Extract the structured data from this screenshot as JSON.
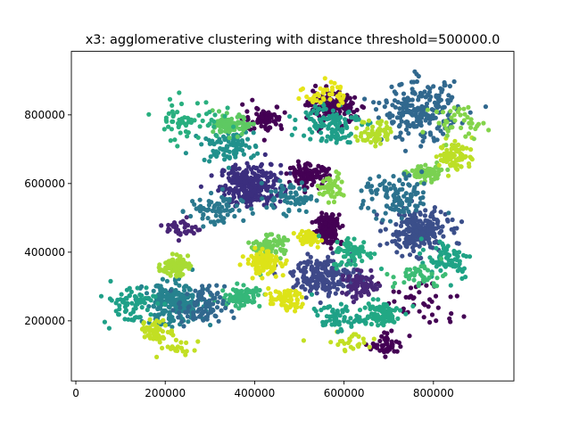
{
  "chart_data": {
    "type": "scatter",
    "title": "x3: agglomerative clustering with distance threshold=500000.0",
    "xlabel": "",
    "ylabel": "",
    "xlim": [
      -10000,
      980000
    ],
    "ylim": [
      25000,
      985000
    ],
    "xticks": [
      0,
      200000,
      400000,
      600000,
      800000
    ],
    "yticks": [
      200000,
      400000,
      600000,
      800000
    ],
    "xtick_labels": [
      "0",
      "200000",
      "400000",
      "600000",
      "800000"
    ],
    "ytick_labels": [
      "200000",
      "400000",
      "600000",
      "800000"
    ],
    "grid": false,
    "legend": "none",
    "clusters": [
      {
        "center": [
          390000,
          595000
        ],
        "spread": [
          45000,
          40000
        ],
        "count": 260,
        "color": "#3b2e7e"
      },
      {
        "center": [
          765000,
          460000
        ],
        "spread": [
          45000,
          40000
        ],
        "count": 230,
        "color": "#3b4f8a"
      },
      {
        "center": [
          575000,
          820000
        ],
        "spread": [
          35000,
          30000
        ],
        "count": 160,
        "color": "#440154"
      },
      {
        "center": [
          520000,
          625000
        ],
        "spread": [
          30000,
          20000
        ],
        "count": 110,
        "color": "#440154"
      },
      {
        "center": [
          565000,
          470000
        ],
        "spread": [
          20000,
          30000
        ],
        "count": 130,
        "color": "#440154"
      },
      {
        "center": [
          420000,
          790000
        ],
        "spread": [
          30000,
          25000
        ],
        "count": 70,
        "color": "#440154"
      },
      {
        "center": [
          700000,
          130000
        ],
        "spread": [
          25000,
          20000
        ],
        "count": 50,
        "color": "#440154"
      },
      {
        "center": [
          770000,
          250000
        ],
        "spread": [
          60000,
          50000
        ],
        "count": 40,
        "color": "#440154"
      },
      {
        "center": [
          770000,
          810000
        ],
        "spread": [
          55000,
          55000
        ],
        "count": 220,
        "color": "#31688e"
      },
      {
        "center": [
          220000,
          250000
        ],
        "spread": [
          45000,
          40000
        ],
        "count": 230,
        "color": "#26828e"
      },
      {
        "center": [
          560000,
          330000
        ],
        "spread": [
          50000,
          35000
        ],
        "count": 200,
        "color": "#3e4989"
      },
      {
        "center": [
          640000,
          300000
        ],
        "spread": [
          30000,
          25000
        ],
        "count": 70,
        "color": "#482878"
      },
      {
        "center": [
          340000,
          710000
        ],
        "spread": [
          40000,
          30000
        ],
        "count": 90,
        "color": "#21918c"
      },
      {
        "center": [
          570000,
          780000
        ],
        "spread": [
          45000,
          40000
        ],
        "count": 110,
        "color": "#1f9e89"
      },
      {
        "center": [
          680000,
          220000
        ],
        "spread": [
          30000,
          25000
        ],
        "count": 100,
        "color": "#22a884"
      },
      {
        "center": [
          350000,
          770000
        ],
        "spread": [
          25000,
          18000
        ],
        "count": 100,
        "color": "#5ec962"
      },
      {
        "center": [
          430000,
          420000
        ],
        "spread": [
          25000,
          18000
        ],
        "count": 90,
        "color": "#6ece58"
      },
      {
        "center": [
          780000,
          630000
        ],
        "spread": [
          25000,
          15000
        ],
        "count": 80,
        "color": "#7ad151"
      },
      {
        "center": [
          370000,
          270000
        ],
        "spread": [
          30000,
          20000
        ],
        "count": 90,
        "color": "#35b779"
      },
      {
        "center": [
          420000,
          370000
        ],
        "spread": [
          25000,
          22000
        ],
        "count": 110,
        "color": "#dde318"
      },
      {
        "center": [
          520000,
          440000
        ],
        "spread": [
          18000,
          15000
        ],
        "count": 50,
        "color": "#dde318"
      },
      {
        "center": [
          470000,
          260000
        ],
        "spread": [
          25000,
          20000
        ],
        "count": 70,
        "color": "#dde318"
      },
      {
        "center": [
          220000,
          360000
        ],
        "spread": [
          20000,
          18000
        ],
        "count": 80,
        "color": "#a8db34"
      },
      {
        "center": [
          850000,
          680000
        ],
        "spread": [
          25000,
          30000
        ],
        "count": 80,
        "color": "#bddf26"
      },
      {
        "center": [
          670000,
          750000
        ],
        "spread": [
          25000,
          25000
        ],
        "count": 60,
        "color": "#b5de2b"
      },
      {
        "center": [
          560000,
          860000
        ],
        "spread": [
          30000,
          25000
        ],
        "count": 40,
        "color": "#e5e419"
      },
      {
        "center": [
          180000,
          170000
        ],
        "spread": [
          25000,
          20000
        ],
        "count": 60,
        "color": "#c2df23"
      },
      {
        "center": [
          620000,
          140000
        ],
        "spread": [
          50000,
          20000
        ],
        "count": 25,
        "color": "#c2df23"
      },
      {
        "center": [
          230000,
          120000
        ],
        "spread": [
          30000,
          20000
        ],
        "count": 20,
        "color": "#c2df23"
      },
      {
        "center": [
          570000,
          590000
        ],
        "spread": [
          20000,
          25000
        ],
        "count": 50,
        "color": "#86d549"
      },
      {
        "center": [
          720000,
          560000
        ],
        "spread": [
          50000,
          45000
        ],
        "count": 110,
        "color": "#2c728e"
      },
      {
        "center": [
          310000,
          520000
        ],
        "spread": [
          40000,
          35000
        ],
        "count": 70,
        "color": "#2a788e"
      },
      {
        "center": [
          280000,
          240000
        ],
        "spread": [
          35000,
          40000
        ],
        "count": 90,
        "color": "#31688e"
      },
      {
        "center": [
          480000,
          560000
        ],
        "spread": [
          35000,
          30000
        ],
        "count": 60,
        "color": "#287c8e"
      },
      {
        "center": [
          240000,
          470000
        ],
        "spread": [
          25000,
          20000
        ],
        "count": 35,
        "color": "#482576"
      },
      {
        "center": [
          830000,
          380000
        ],
        "spread": [
          40000,
          40000
        ],
        "count": 70,
        "color": "#20a386"
      },
      {
        "center": [
          620000,
          400000
        ],
        "spread": [
          30000,
          30000
        ],
        "count": 70,
        "color": "#25ab82"
      },
      {
        "center": [
          250000,
          790000
        ],
        "spread": [
          50000,
          40000
        ],
        "count": 60,
        "color": "#29af7f"
      },
      {
        "center": [
          120000,
          250000
        ],
        "spread": [
          40000,
          40000
        ],
        "count": 70,
        "color": "#1fa088"
      },
      {
        "center": [
          860000,
          780000
        ],
        "spread": [
          40000,
          30000
        ],
        "count": 40,
        "color": "#84d44b"
      },
      {
        "center": [
          770000,
          330000
        ],
        "spread": [
          40000,
          25000
        ],
        "count": 40,
        "color": "#3dbc74"
      },
      {
        "center": [
          580000,
          210000
        ],
        "spread": [
          35000,
          25000
        ],
        "count": 60,
        "color": "#1fa187"
      }
    ]
  }
}
